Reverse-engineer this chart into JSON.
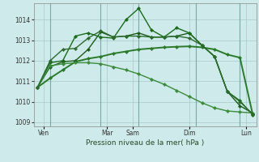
{
  "background_color": "#ceeaea",
  "grid_color": "#a8c8c8",
  "xlabel": "Pression niveau de la mer( hPa )",
  "ylim": [
    1008.8,
    1014.8
  ],
  "yticks": [
    1009,
    1010,
    1011,
    1012,
    1013,
    1014
  ],
  "xlim": [
    -0.3,
    17.3
  ],
  "xtick_labels": [
    "Ven",
    "Mar",
    "Sam",
    "Dim",
    "Lun"
  ],
  "xtick_positions": [
    0.5,
    5.5,
    7.5,
    12.0,
    16.5
  ],
  "vline_positions": [
    1.0,
    5.0,
    8.0,
    12.5,
    16.0
  ],
  "vline_color": "#7aabab",
  "series": [
    {
      "x": [
        0,
        1,
        2,
        3,
        4,
        5,
        6,
        7,
        8,
        9,
        10,
        11,
        12,
        13,
        14,
        15,
        16,
        17
      ],
      "y": [
        1010.7,
        1011.15,
        1011.55,
        1011.95,
        1012.1,
        1012.2,
        1012.35,
        1012.45,
        1012.55,
        1012.6,
        1012.65,
        1012.68,
        1012.7,
        1012.65,
        1012.55,
        1012.3,
        1012.15,
        1009.4
      ],
      "color": "#2a7a2a",
      "lw": 1.4,
      "marker": "D",
      "ms": 2.2
    },
    {
      "x": [
        0,
        1,
        2,
        3,
        4,
        5,
        6,
        7,
        8,
        9,
        10,
        11,
        12,
        13,
        14,
        15,
        16,
        17
      ],
      "y": [
        1010.7,
        1011.7,
        1011.95,
        1012.0,
        1012.55,
        1013.4,
        1013.15,
        1013.2,
        1013.35,
        1013.15,
        1013.15,
        1013.2,
        1013.35,
        1012.75,
        1012.2,
        1010.5,
        1009.8,
        1009.45
      ],
      "color": "#1a5c1a",
      "lw": 1.0,
      "marker": "D",
      "ms": 2.2
    },
    {
      "x": [
        0,
        1,
        2,
        3,
        4,
        5,
        6,
        7,
        8,
        9,
        10,
        11,
        12,
        13,
        14,
        15,
        16,
        17
      ],
      "y": [
        1010.7,
        1011.9,
        1012.0,
        1013.2,
        1013.35,
        1013.15,
        1013.1,
        1014.0,
        1014.55,
        1013.5,
        1013.15,
        1013.6,
        1013.35,
        1012.75,
        1012.2,
        1010.5,
        1010.05,
        1009.35
      ],
      "color": "#1a6b1a",
      "lw": 1.0,
      "marker": "D",
      "ms": 2.2
    },
    {
      "x": [
        0,
        1,
        2,
        3,
        4,
        5,
        6,
        7,
        8,
        9,
        10,
        11,
        12,
        13,
        14,
        15,
        16,
        17
      ],
      "y": [
        1010.7,
        1011.75,
        1011.85,
        1011.9,
        1011.9,
        1011.85,
        1011.7,
        1011.55,
        1011.35,
        1011.1,
        1010.85,
        1010.55,
        1010.25,
        1009.95,
        1009.7,
        1009.55,
        1009.5,
        1009.45
      ],
      "color": "#3a8b3a",
      "lw": 1.0,
      "marker": "D",
      "ms": 2.2
    },
    {
      "x": [
        0,
        1,
        2,
        3,
        4,
        5,
        6,
        7,
        8,
        9,
        10,
        11,
        12,
        13,
        14,
        15,
        16,
        17
      ],
      "y": [
        1010.7,
        1012.0,
        1012.55,
        1012.6,
        1013.1,
        1013.45,
        1013.15,
        1013.2,
        1013.2,
        1013.15,
        1013.15,
        1013.2,
        1013.1,
        1012.75,
        1012.2,
        1010.5,
        1010.0,
        1009.4
      ],
      "color": "#2d6b2d",
      "lw": 1.0,
      "marker": "D",
      "ms": 2.2
    }
  ]
}
